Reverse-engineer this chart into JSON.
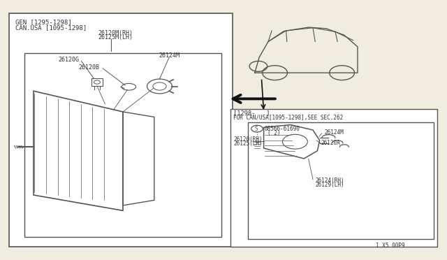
{
  "bg_color": "#f0ece0",
  "line_color": "#555555",
  "text_color": "#333333",
  "part_number_bottom": "1 X5 00P9",
  "gen_label": "GEN [1295-1298]",
  "can_usa_label": "CAN.USA [1095-1298]",
  "part_26120M": "26120M(RH)",
  "part_26125M": "26125M(LH)",
  "part_26120G": "26120G",
  "part_26120B": "26120B",
  "part_26124M_top": "26124M",
  "part_1298": "[1298-   ]",
  "part_for_can": "FOR CAN/USA[1095-1298],SEE SEC.262",
  "part_08566": "08566-61690",
  "part_2": "( 2)",
  "part_26120_RH": "26120(RH)",
  "part_26125_LH": "26125(LH)",
  "part_26124M_br": "26124M",
  "part_26120A": "26120A",
  "part_26124_RH": "26124(RH)",
  "part_26129_LH": "26129(LH)"
}
